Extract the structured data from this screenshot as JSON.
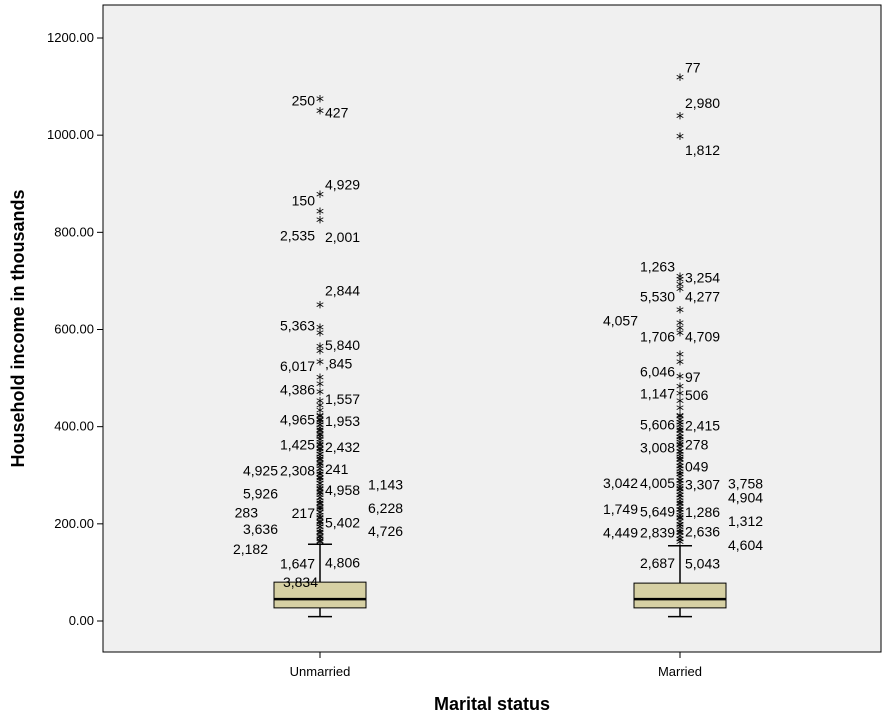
{
  "chart_data": {
    "type": "boxplot",
    "title": "",
    "xlabel": "Marital status",
    "ylabel": "Household income in thousands",
    "ylim": [
      -70,
      1240
    ],
    "yticks": [
      0,
      200,
      400,
      600,
      800,
      1000,
      1200
    ],
    "ytick_labels": [
      "0.00",
      "200.00",
      "400.00",
      "600.00",
      "800.00",
      "1000.00",
      "1200.00"
    ],
    "grid": false,
    "colors": {
      "plot_bg": "#f0f0f0",
      "box_fill": "#d6d0a4",
      "line": "#000000"
    },
    "categories": [
      "Unmarried",
      "Married"
    ],
    "boxes": [
      {
        "category": "Unmarried",
        "whisker_low": 9,
        "q1": 27,
        "median": 45,
        "q3": 80,
        "whisker_high": 158,
        "outlier_values": [
          1071,
          1047,
          875,
          840,
          822,
          647,
          601,
          590,
          562,
          553,
          530,
          498,
          485,
          468,
          450,
          440,
          430,
          420,
          410,
          400,
          390,
          380,
          370,
          360,
          350,
          340,
          330,
          320,
          310,
          300,
          290,
          280,
          270,
          260,
          250,
          240,
          230,
          220,
          210,
          200,
          190,
          180,
          170,
          162
        ],
        "labels": [
          {
            "text": "250",
            "y": 1071,
            "side": "left"
          },
          {
            "text": "427",
            "y": 1047,
            "side": "right"
          },
          {
            "text": "4,929",
            "y": 898,
            "side": "right"
          },
          {
            "text": "150",
            "y": 866,
            "side": "left"
          },
          {
            "text": "2,535",
            "y": 793,
            "side": "left"
          },
          {
            "text": "2,001",
            "y": 790,
            "side": "right"
          },
          {
            "text": "2,844",
            "y": 680,
            "side": "right"
          },
          {
            "text": "5,363",
            "y": 608,
            "side": "left"
          },
          {
            "text": "5,840",
            "y": 568,
            "side": "right"
          },
          {
            "text": "6,017",
            "y": 525,
            "side": "left"
          },
          {
            "text": ",845",
            "y": 530,
            "side": "right"
          },
          {
            "text": "4,386",
            "y": 477,
            "side": "left"
          },
          {
            "text": "1,557",
            "y": 457,
            "side": "right"
          },
          {
            "text": "4,965",
            "y": 415,
            "side": "left"
          },
          {
            "text": "1,953",
            "y": 412,
            "side": "right"
          },
          {
            "text": "1,425",
            "y": 363,
            "side": "left"
          },
          {
            "text": "2,432",
            "y": 358,
            "side": "right"
          },
          {
            "text": "4,925",
            "y": 310,
            "side": "far-left"
          },
          {
            "text": "2,308",
            "y": 310,
            "side": "left"
          },
          {
            "text": "241",
            "y": 313,
            "side": "right"
          },
          {
            "text": "1,143",
            "y": 281,
            "side": "far-right"
          },
          {
            "text": "5,926",
            "y": 262,
            "side": "far-left"
          },
          {
            "text": "4,958",
            "y": 270,
            "side": "right"
          },
          {
            "text": "6,228",
            "y": 233,
            "side": "far-right"
          },
          {
            "text": "283",
            "y": 223,
            "side": "far-left-2"
          },
          {
            "text": "217",
            "y": 222,
            "side": "left"
          },
          {
            "text": "5,402",
            "y": 203,
            "side": "right"
          },
          {
            "text": "3,636",
            "y": 189,
            "side": "far-left"
          },
          {
            "text": "4,726",
            "y": 185,
            "side": "far-right"
          },
          {
            "text": "2,182",
            "y": 148,
            "side": "far-left-3"
          },
          {
            "text": "1,647",
            "y": 118,
            "side": "left"
          },
          {
            "text": "4,806",
            "y": 120,
            "side": "right"
          },
          {
            "text": "3,834",
            "y": 80,
            "side": "left-top"
          }
        ]
      },
      {
        "category": "Married",
        "whisker_low": 9,
        "q1": 27,
        "median": 45,
        "q3": 78,
        "whisker_high": 155,
        "outlier_values": [
          1116,
          1036,
          994,
          706,
          700,
          690,
          680,
          637,
          610,
          600,
          590,
          545,
          530,
          500,
          480,
          465,
          450,
          435,
          420,
          405,
          390,
          375,
          360,
          345,
          330,
          315,
          300,
          285,
          270,
          255,
          240,
          225,
          210,
          195,
          180,
          165
        ],
        "labels": [
          {
            "text": "77",
            "y": 1139,
            "side": "right"
          },
          {
            "text": "2,980",
            "y": 1066,
            "side": "right"
          },
          {
            "text": "1,812",
            "y": 969,
            "side": "right"
          },
          {
            "text": "1,263",
            "y": 730,
            "side": "left"
          },
          {
            "text": "3,254",
            "y": 707,
            "side": "right"
          },
          {
            "text": "5,530",
            "y": 668,
            "side": "left"
          },
          {
            "text": "4,277",
            "y": 668,
            "side": "right"
          },
          {
            "text": "4,057",
            "y": 619,
            "side": "far-left"
          },
          {
            "text": "1,706",
            "y": 586,
            "side": "left"
          },
          {
            "text": "4,709",
            "y": 586,
            "side": "right"
          },
          {
            "text": "6,046",
            "y": 514,
            "side": "left"
          },
          {
            "text": "97",
            "y": 502,
            "side": "right"
          },
          {
            "text": "1,147",
            "y": 468,
            "side": "left"
          },
          {
            "text": "506",
            "y": 465,
            "side": "right"
          },
          {
            "text": "5,606",
            "y": 404,
            "side": "left"
          },
          {
            "text": "2,415",
            "y": 402,
            "side": "right"
          },
          {
            "text": "3,008",
            "y": 357,
            "side": "left"
          },
          {
            "text": "278",
            "y": 363,
            "side": "right"
          },
          {
            "text": "049",
            "y": 318,
            "side": "right"
          },
          {
            "text": "3,042",
            "y": 284,
            "side": "far-left"
          },
          {
            "text": "4,005",
            "y": 284,
            "side": "left"
          },
          {
            "text": "3,307",
            "y": 281,
            "side": "right"
          },
          {
            "text": "3,758",
            "y": 283,
            "side": "far-right"
          },
          {
            "text": "4,904",
            "y": 254,
            "side": "far-right"
          },
          {
            "text": "1,749",
            "y": 231,
            "side": "far-left"
          },
          {
            "text": "5,649",
            "y": 225,
            "side": "left"
          },
          {
            "text": "1,286",
            "y": 224,
            "side": "right"
          },
          {
            "text": "1,312",
            "y": 206,
            "side": "far-right"
          },
          {
            "text": "4,449",
            "y": 182,
            "side": "far-left"
          },
          {
            "text": "2,839",
            "y": 182,
            "side": "left"
          },
          {
            "text": "2,636",
            "y": 184,
            "side": "right"
          },
          {
            "text": "4,604",
            "y": 156,
            "side": "far-right"
          },
          {
            "text": "2,687",
            "y": 119,
            "side": "left"
          },
          {
            "text": "5,043",
            "y": 118,
            "side": "right"
          }
        ]
      }
    ]
  }
}
